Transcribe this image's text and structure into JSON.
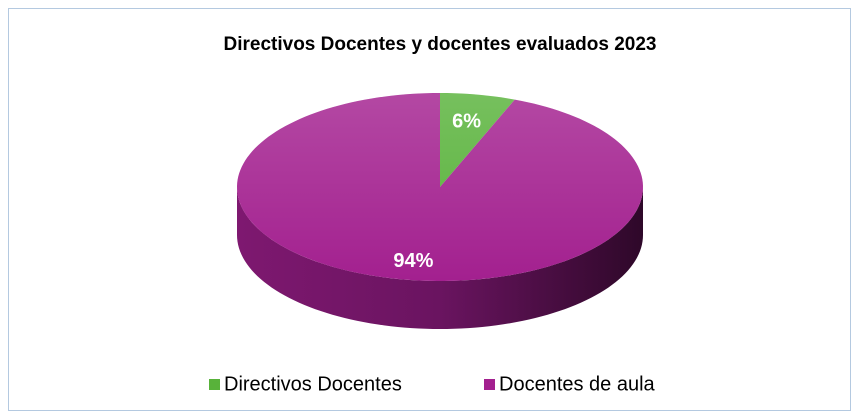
{
  "chart_data": {
    "type": "pie",
    "title": "Directivos Docentes y docentes evaluados 2023",
    "categories": [
      "Directivos Docentes",
      "Docentes de aula"
    ],
    "values": [
      6,
      94
    ],
    "value_labels": [
      "6%",
      "94%"
    ],
    "colors": [
      "#58b23a",
      "#a3208f"
    ],
    "legend": "bottom"
  }
}
